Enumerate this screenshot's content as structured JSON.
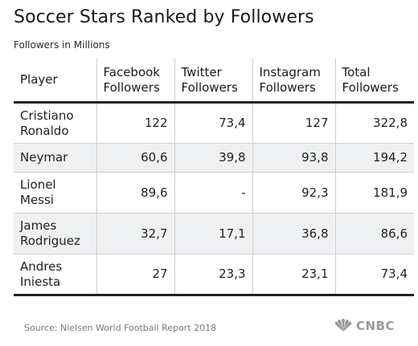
{
  "title": "Soccer Stars Ranked by Followers",
  "subtitle": "Followers in Millions",
  "footer": {
    "source": "Source: Nielsen World Football Report 2018",
    "logo_text": "CNBC",
    "logo_icon": "peacock-icon"
  },
  "colors": {
    "row_shade": "#eef0f2",
    "rule": "#222222",
    "grid": "#cfcfcf",
    "footer_text": "#7a7a7a"
  },
  "chart_data": {
    "type": "table",
    "title": "Soccer Stars Ranked by Followers",
    "subtitle": "Followers in Millions",
    "columns": [
      "Player",
      "Facebook Followers",
      "Twitter Followers",
      "Instagram Followers",
      "Total Followers"
    ],
    "rows": [
      [
        "Cristiano Ronaldo",
        "122",
        "73,4",
        "127",
        "322,8"
      ],
      [
        "Neymar",
        "60,6",
        "39,8",
        "93,8",
        "194,2"
      ],
      [
        "Lionel Messi",
        "89,6",
        "-",
        "92,3",
        "181,9"
      ],
      [
        "James Rodriguez",
        "32,7",
        "17,1",
        "36,8",
        "86,6"
      ],
      [
        "Andres Iniesta",
        "27",
        "23,3",
        "23,1",
        "73,4"
      ]
    ]
  }
}
